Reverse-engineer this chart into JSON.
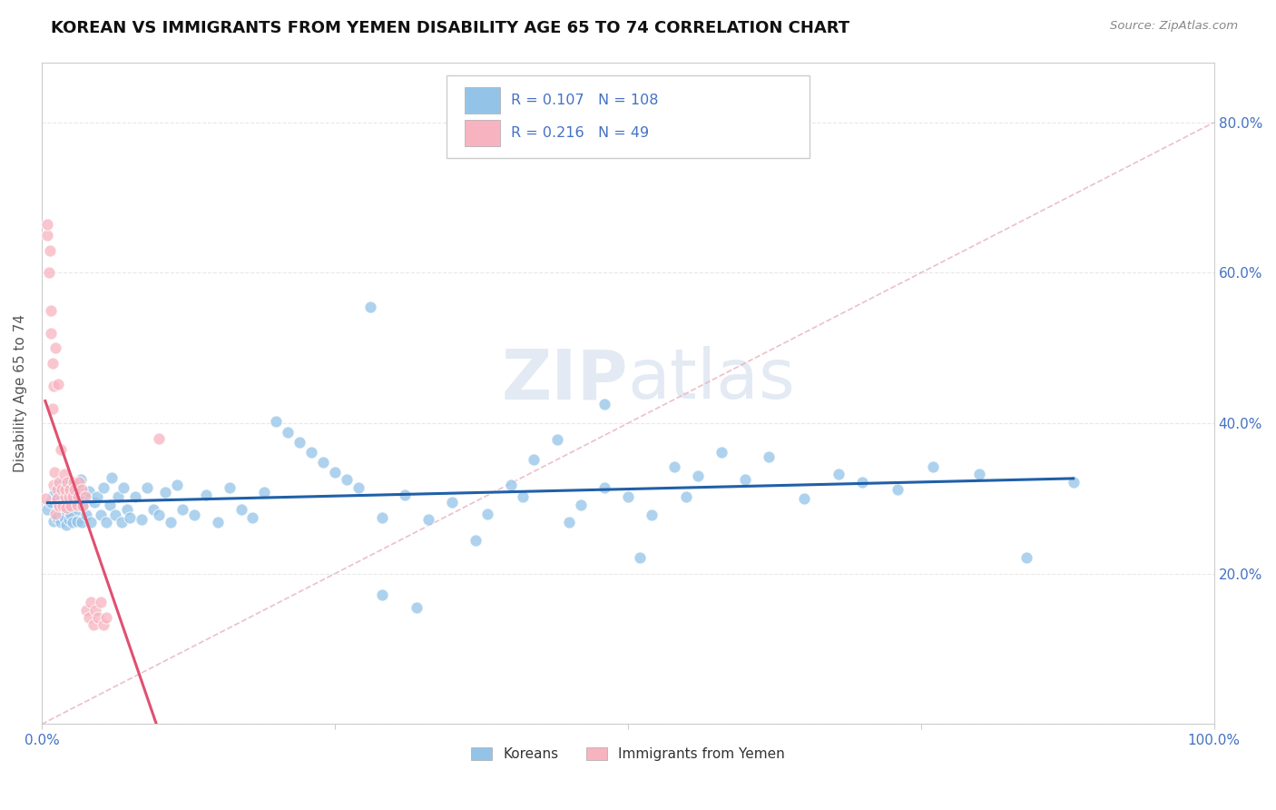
{
  "title": "KOREAN VS IMMIGRANTS FROM YEMEN DISABILITY AGE 65 TO 74 CORRELATION CHART",
  "source": "Source: ZipAtlas.com",
  "ylabel": "Disability Age 65 to 74",
  "xlim": [
    0.0,
    1.0
  ],
  "ylim": [
    0.0,
    0.88
  ],
  "yticks": [
    0.0,
    0.2,
    0.4,
    0.6,
    0.8
  ],
  "xticks": [
    0.0,
    0.25,
    0.5,
    0.75,
    1.0
  ],
  "korean_R": 0.107,
  "korean_N": 108,
  "yemen_R": 0.216,
  "yemen_N": 49,
  "korean_color": "#93c4e8",
  "yemen_color": "#f7b3c0",
  "korean_line_color": "#2060a8",
  "yemen_line_color": "#e05070",
  "diagonal_color": "#d8d8d8",
  "legend_label_korean": "Koreans",
  "legend_label_yemen": "Immigrants from Yemen",
  "watermark": "ZIPatlas",
  "background_color": "#ffffff",
  "grid_color": "#e8e8e8",
  "title_fontsize": 13,
  "axis_label_fontsize": 11,
  "tick_fontsize": 11,
  "legend_fontsize": 11,
  "korean_scatter_x": [
    0.005,
    0.008,
    0.01,
    0.01,
    0.012,
    0.013,
    0.015,
    0.015,
    0.016,
    0.017,
    0.018,
    0.018,
    0.019,
    0.02,
    0.02,
    0.021,
    0.022,
    0.022,
    0.023,
    0.023,
    0.024,
    0.025,
    0.025,
    0.026,
    0.027,
    0.028,
    0.03,
    0.03,
    0.031,
    0.032,
    0.033,
    0.034,
    0.035,
    0.036,
    0.038,
    0.04,
    0.042,
    0.045,
    0.047,
    0.05,
    0.053,
    0.055,
    0.058,
    0.06,
    0.063,
    0.065,
    0.068,
    0.07,
    0.073,
    0.075,
    0.08,
    0.085,
    0.09,
    0.095,
    0.1,
    0.105,
    0.11,
    0.115,
    0.12,
    0.13,
    0.14,
    0.15,
    0.16,
    0.17,
    0.18,
    0.19,
    0.2,
    0.21,
    0.22,
    0.23,
    0.24,
    0.25,
    0.26,
    0.27,
    0.28,
    0.29,
    0.31,
    0.33,
    0.35,
    0.38,
    0.4,
    0.42,
    0.44,
    0.46,
    0.48,
    0.5,
    0.52,
    0.54,
    0.56,
    0.58,
    0.6,
    0.62,
    0.65,
    0.68,
    0.7,
    0.73,
    0.76,
    0.8,
    0.84,
    0.88,
    0.29,
    0.32,
    0.37,
    0.41,
    0.45,
    0.48,
    0.51,
    0.55
  ],
  "korean_scatter_y": [
    0.285,
    0.295,
    0.27,
    0.305,
    0.31,
    0.275,
    0.29,
    0.315,
    0.268,
    0.3,
    0.28,
    0.32,
    0.275,
    0.285,
    0.31,
    0.265,
    0.295,
    0.318,
    0.272,
    0.308,
    0.282,
    0.278,
    0.315,
    0.268,
    0.292,
    0.305,
    0.27,
    0.315,
    0.285,
    0.295,
    0.325,
    0.268,
    0.29,
    0.302,
    0.278,
    0.31,
    0.268,
    0.295,
    0.302,
    0.278,
    0.315,
    0.268,
    0.292,
    0.328,
    0.278,
    0.302,
    0.268,
    0.315,
    0.285,
    0.275,
    0.302,
    0.272,
    0.315,
    0.285,
    0.278,
    0.308,
    0.268,
    0.318,
    0.285,
    0.278,
    0.305,
    0.268,
    0.315,
    0.285,
    0.275,
    0.308,
    0.402,
    0.388,
    0.375,
    0.362,
    0.348,
    0.335,
    0.325,
    0.315,
    0.555,
    0.275,
    0.305,
    0.272,
    0.295,
    0.28,
    0.318,
    0.352,
    0.378,
    0.292,
    0.425,
    0.302,
    0.278,
    0.342,
    0.33,
    0.362,
    0.325,
    0.355,
    0.3,
    0.332,
    0.322,
    0.312,
    0.342,
    0.332,
    0.222,
    0.322,
    0.172,
    0.155,
    0.245,
    0.302,
    0.268,
    0.315,
    0.222,
    0.302
  ],
  "yemen_scatter_x": [
    0.003,
    0.005,
    0.005,
    0.006,
    0.007,
    0.008,
    0.008,
    0.009,
    0.009,
    0.01,
    0.01,
    0.011,
    0.012,
    0.012,
    0.013,
    0.013,
    0.014,
    0.015,
    0.015,
    0.016,
    0.017,
    0.018,
    0.019,
    0.02,
    0.02,
    0.021,
    0.022,
    0.023,
    0.024,
    0.025,
    0.026,
    0.027,
    0.028,
    0.03,
    0.031,
    0.032,
    0.034,
    0.035,
    0.037,
    0.038,
    0.04,
    0.042,
    0.044,
    0.046,
    0.048,
    0.05,
    0.053,
    0.055,
    0.1
  ],
  "yemen_scatter_y": [
    0.3,
    0.65,
    0.665,
    0.6,
    0.63,
    0.55,
    0.52,
    0.48,
    0.42,
    0.45,
    0.318,
    0.335,
    0.5,
    0.28,
    0.312,
    0.3,
    0.452,
    0.29,
    0.322,
    0.365,
    0.312,
    0.29,
    0.332,
    0.302,
    0.312,
    0.288,
    0.322,
    0.302,
    0.312,
    0.29,
    0.302,
    0.322,
    0.312,
    0.292,
    0.302,
    0.322,
    0.312,
    0.29,
    0.302,
    0.152,
    0.142,
    0.162,
    0.132,
    0.152,
    0.142,
    0.162,
    0.132,
    0.142,
    0.38
  ]
}
